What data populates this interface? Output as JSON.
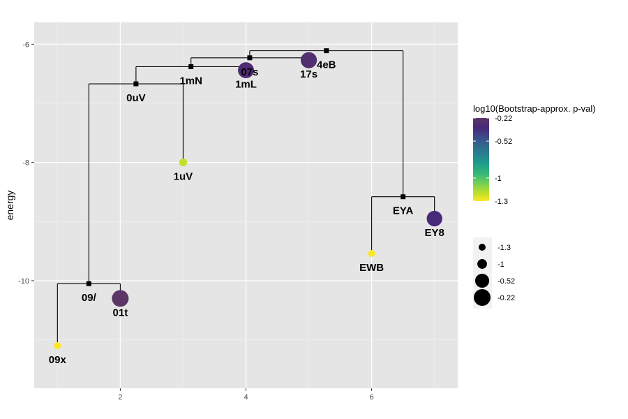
{
  "chart_data": {
    "type": "scatter",
    "ylabel": "energy",
    "xlim": [
      0.63,
      7.37
    ],
    "ylim": [
      -11.82,
      -5.63
    ],
    "x_ticks": [
      2,
      4,
      6
    ],
    "y_ticks": [
      -10,
      -8,
      -6
    ],
    "minima": [
      {
        "label": "09x",
        "x": 1,
        "y": -11.1,
        "pval": -1.3
      },
      {
        "label": "01t",
        "x": 2,
        "y": -10.3,
        "pval": -0.22
      },
      {
        "label": "1uV",
        "x": 3,
        "y": -8.0,
        "pval": -1.2
      },
      {
        "label": "1mL",
        "x": 4,
        "y": -6.44,
        "pval": -0.3
      },
      {
        "label": "17s",
        "x": 5,
        "y": -6.27,
        "pval": -0.28
      },
      {
        "label": "EWB",
        "x": 6,
        "y": -9.54,
        "pval": -1.3
      },
      {
        "label": "EY8",
        "x": 7,
        "y": -8.95,
        "pval": -0.35
      }
    ],
    "saddles": [
      {
        "label": "09/",
        "x": 1.5,
        "y": -10.05
      },
      {
        "label": "0uV",
        "x": 2.25,
        "y": -6.67
      },
      {
        "label": "1mN",
        "x": 3.125,
        "y": -6.38
      },
      {
        "label": "07s",
        "x": 4.06,
        "y": -6.23
      },
      {
        "label": "4eB",
        "x": 5.28,
        "y": -6.11
      },
      {
        "label": "EYA",
        "x": 6.5,
        "y": -8.58
      }
    ],
    "edges": [
      {
        "parent": "09/",
        "children": [
          "09x",
          "01t"
        ]
      },
      {
        "parent": "0uV",
        "children": [
          "09/",
          "1uV"
        ]
      },
      {
        "parent": "1mN",
        "children": [
          "0uV",
          "1mL"
        ]
      },
      {
        "parent": "07s",
        "children": [
          "1mN",
          "17s"
        ]
      },
      {
        "parent": "4eB",
        "children": [
          "07s",
          "EYA"
        ]
      },
      {
        "parent": "EYA",
        "children": [
          "EWB",
          "EY8"
        ]
      }
    ],
    "color_legend": {
      "title": "log10(Bootstrap-approx. p-val)",
      "ticks": [
        -0.22,
        -0.52,
        -1,
        -1.3
      ],
      "tick_labels": [
        "-0.22",
        "-0.52",
        "-1",
        "-1.3"
      ],
      "range": [
        -1.3,
        -0.22
      ],
      "colors": [
        "#fde725",
        "#b5de2b",
        "#6ece58",
        "#35b779",
        "#1f9e89",
        "#26828e",
        "#31688e",
        "#3e4989",
        "#482878",
        "#5b3667"
      ]
    },
    "size_legend": {
      "values": [
        -1.3,
        -1,
        -0.52,
        -0.22
      ],
      "labels": [
        "-1.3",
        "-1",
        "-0.52",
        "-0.22"
      ]
    },
    "grid": true,
    "legend_placement": "right"
  }
}
